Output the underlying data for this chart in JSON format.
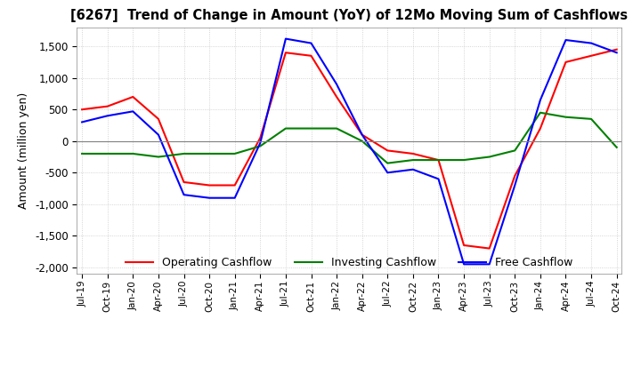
{
  "title": "[6267]  Trend of Change in Amount (YoY) of 12Mo Moving Sum of Cashflows",
  "ylabel": "Amount (million yen)",
  "ylim": [
    -2100,
    1800
  ],
  "yticks": [
    -2000,
    -1500,
    -1000,
    -500,
    0,
    500,
    1000,
    1500
  ],
  "x_labels": [
    "Jul-19",
    "Oct-19",
    "Jan-20",
    "Apr-20",
    "Jul-20",
    "Oct-20",
    "Jan-21",
    "Apr-21",
    "Jul-21",
    "Oct-21",
    "Jan-22",
    "Apr-22",
    "Jul-22",
    "Oct-22",
    "Jan-23",
    "Apr-23",
    "Jul-23",
    "Oct-23",
    "Jan-24",
    "Apr-24",
    "Jul-24",
    "Oct-24"
  ],
  "operating": [
    500,
    550,
    700,
    350,
    -650,
    -700,
    -700,
    50,
    1400,
    1350,
    700,
    100,
    -150,
    -200,
    -300,
    -1650,
    -1700,
    -550,
    200,
    1250,
    1350,
    1450
  ],
  "investing": [
    -200,
    -200,
    -200,
    -250,
    -200,
    -200,
    -200,
    -80,
    200,
    200,
    200,
    0,
    -350,
    -300,
    -300,
    -300,
    -250,
    -150,
    450,
    380,
    350,
    -100
  ],
  "free": [
    300,
    400,
    470,
    100,
    -850,
    -900,
    -900,
    -30,
    1620,
    1550,
    900,
    100,
    -500,
    -450,
    -600,
    -1950,
    -1950,
    -700,
    650,
    1600,
    1550,
    1400
  ],
  "op_color": "#ff0000",
  "inv_color": "#008000",
  "free_color": "#0000ff",
  "bg_color": "#ffffff",
  "grid_color": "#c8c8c8"
}
